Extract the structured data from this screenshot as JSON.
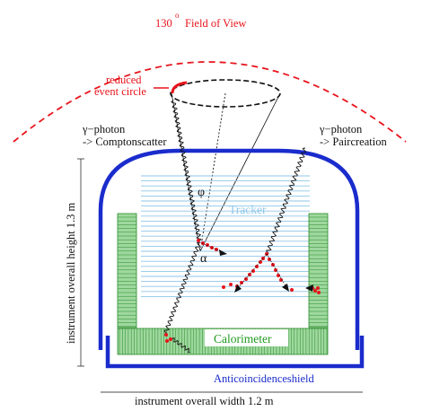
{
  "labels": {
    "field_of_view_number": "130",
    "field_of_view_degree": "o",
    "field_of_view_text": "Field of View",
    "reduced_line1": "reduced",
    "reduced_line2": "event circle",
    "photon_left_line1": "γ−photon",
    "photon_left_line2": "-> Comptonscatter",
    "photon_right_line1": "γ−photon",
    "photon_right_line2": "-> Paircreation",
    "phi": "φ",
    "alpha": "α",
    "tracker": "Tracker",
    "calorimeter": "Calorimeter",
    "anticoincidence": "Anticoincidenceshield",
    "height": "instrument overall height 1.3 m",
    "width": "instrument overall width 1.2 m"
  },
  "colors": {
    "red": "#e8141c",
    "blue": "#1a2ccc",
    "tracker_lines": "#8fc6e8",
    "green_fill": "#9ed89e",
    "green_stroke": "#2a8a2a",
    "black": "#111111"
  }
}
